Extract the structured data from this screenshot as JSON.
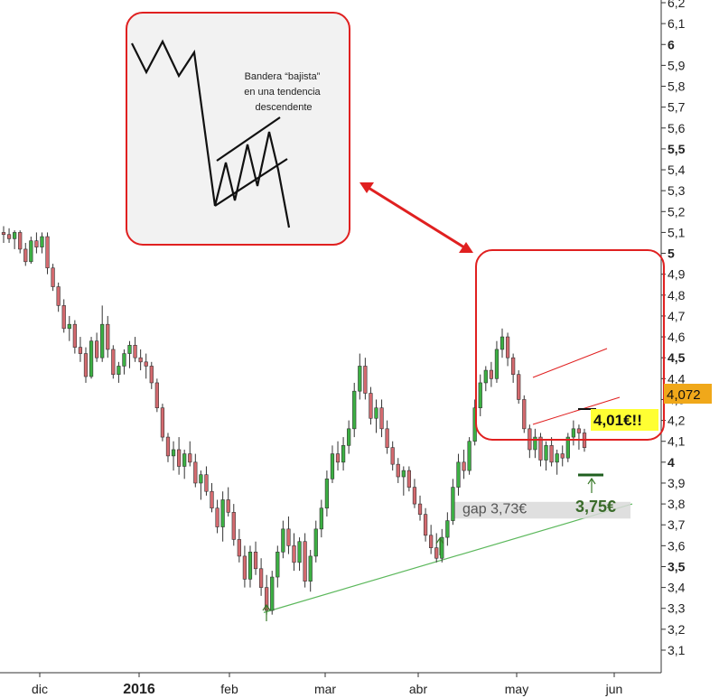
{
  "chart_data": {
    "type": "candlestick",
    "y_ticks": [
      "3,1",
      "3,2",
      "3,3",
      "3,4",
      "3,5",
      "3,6",
      "3,7",
      "3,8",
      "3,9",
      "4",
      "4,1",
      "4,2",
      "4,3",
      "4,4",
      "4,5",
      "4,6",
      "4,7",
      "4,8",
      "4,9",
      "5",
      "5,1",
      "5,2",
      "5,3",
      "5,4",
      "5,5",
      "5,6",
      "5,7",
      "5,8",
      "5,9",
      "6",
      "6,1",
      "6,2"
    ],
    "y_ticks_bold": [
      "3,5",
      "4",
      "4,5",
      "5",
      "5,5",
      "6"
    ],
    "ylim": [
      3.05,
      6.25
    ],
    "x_ticks": [
      "dic",
      "2016",
      "feb",
      "mar",
      "abr",
      "may",
      "jun"
    ],
    "x_ticks_bold": [
      "2016"
    ],
    "last_price_label": "4,072",
    "last_price": 4.072,
    "colors": {
      "up": "#3cb043",
      "down": "#d46a6f",
      "annotation_red": "#e02020",
      "support": "#5cb85c",
      "gap_box": "#d9d9d9",
      "price_box": "#f0a81a",
      "callout_bg": "#ffff33"
    },
    "annotations": {
      "flag_level": "4,01€!!",
      "gap_label": "gap 3,73€",
      "support_level": "3,75€",
      "inset_caption": [
        "Bandera “bajista”",
        "en una tendencia",
        "descendente"
      ]
    },
    "support_line": {
      "from": [
        "feb",
        3.28
      ],
      "to": [
        "jun",
        3.8
      ]
    },
    "gap_zone": [
      3.73,
      3.81
    ],
    "flag_channel_upper": [
      [
        4.16,
        4.26
      ]
    ],
    "candles": [
      [
        5.1,
        5.13,
        5.05,
        5.09
      ],
      [
        5.09,
        5.12,
        5.05,
        5.07
      ],
      [
        5.07,
        5.11,
        5.02,
        5.1
      ],
      [
        5.1,
        5.11,
        5.0,
        5.02
      ],
      [
        5.02,
        5.05,
        4.94,
        4.96
      ],
      [
        4.96,
        5.08,
        4.95,
        5.06
      ],
      [
        5.06,
        5.1,
        5.0,
        5.03
      ],
      [
        5.03,
        5.1,
        5.0,
        5.08
      ],
      [
        5.08,
        5.1,
        4.9,
        4.93
      ],
      [
        4.93,
        4.95,
        4.82,
        4.84
      ],
      [
        4.84,
        4.86,
        4.72,
        4.75
      ],
      [
        4.75,
        4.78,
        4.62,
        4.64
      ],
      [
        4.64,
        4.7,
        4.58,
        4.66
      ],
      [
        4.66,
        4.68,
        4.52,
        4.55
      ],
      [
        4.55,
        4.6,
        4.48,
        4.52
      ],
      [
        4.52,
        4.55,
        4.38,
        4.41
      ],
      [
        4.41,
        4.6,
        4.4,
        4.58
      ],
      [
        4.58,
        4.62,
        4.48,
        4.5
      ],
      [
        4.5,
        4.75,
        4.48,
        4.66
      ],
      [
        4.66,
        4.7,
        4.5,
        4.54
      ],
      [
        4.54,
        4.56,
        4.4,
        4.42
      ],
      [
        4.42,
        4.48,
        4.38,
        4.46
      ],
      [
        4.46,
        4.54,
        4.42,
        4.52
      ],
      [
        4.52,
        4.58,
        4.45,
        4.56
      ],
      [
        4.56,
        4.6,
        4.48,
        4.5
      ],
      [
        4.5,
        4.54,
        4.44,
        4.48
      ],
      [
        4.48,
        4.52,
        4.4,
        4.46
      ],
      [
        4.46,
        4.48,
        4.35,
        4.38
      ],
      [
        4.38,
        4.4,
        4.24,
        4.26
      ],
      [
        4.26,
        4.28,
        4.1,
        4.12
      ],
      [
        4.12,
        4.14,
        4.0,
        4.03
      ],
      [
        4.03,
        4.1,
        3.96,
        4.06
      ],
      [
        4.06,
        4.12,
        3.94,
        3.98
      ],
      [
        3.98,
        4.06,
        3.92,
        4.04
      ],
      [
        4.04,
        4.1,
        3.98,
        4.0
      ],
      [
        4.0,
        4.04,
        3.88,
        3.9
      ],
      [
        3.9,
        3.96,
        3.82,
        3.94
      ],
      [
        3.94,
        3.98,
        3.84,
        3.86
      ],
      [
        3.86,
        3.9,
        3.76,
        3.78
      ],
      [
        3.78,
        3.82,
        3.66,
        3.69
      ],
      [
        3.69,
        3.86,
        3.62,
        3.82
      ],
      [
        3.82,
        3.88,
        3.74,
        3.76
      ],
      [
        3.76,
        3.8,
        3.6,
        3.63
      ],
      [
        3.63,
        3.68,
        3.52,
        3.55
      ],
      [
        3.55,
        3.6,
        3.4,
        3.44
      ],
      [
        3.44,
        3.6,
        3.4,
        3.57
      ],
      [
        3.57,
        3.62,
        3.46,
        3.49
      ],
      [
        3.49,
        3.54,
        3.36,
        3.4
      ],
      [
        3.4,
        3.46,
        3.27,
        3.29
      ],
      [
        3.29,
        3.48,
        3.27,
        3.45
      ],
      [
        3.45,
        3.6,
        3.4,
        3.57
      ],
      [
        3.57,
        3.72,
        3.54,
        3.68
      ],
      [
        3.68,
        3.74,
        3.56,
        3.6
      ],
      [
        3.6,
        3.66,
        3.48,
        3.52
      ],
      [
        3.52,
        3.64,
        3.48,
        3.62
      ],
      [
        3.62,
        3.66,
        3.4,
        3.43
      ],
      [
        3.43,
        3.58,
        3.38,
        3.55
      ],
      [
        3.55,
        3.72,
        3.52,
        3.68
      ],
      [
        3.68,
        3.82,
        3.64,
        3.78
      ],
      [
        3.78,
        3.96,
        3.74,
        3.92
      ],
      [
        3.92,
        4.08,
        3.9,
        4.04
      ],
      [
        4.04,
        4.1,
        3.96,
        4.0
      ],
      [
        4.0,
        4.12,
        3.96,
        4.08
      ],
      [
        4.08,
        4.2,
        4.04,
        4.16
      ],
      [
        4.16,
        4.38,
        4.12,
        4.34
      ],
      [
        4.34,
        4.52,
        4.3,
        4.46
      ],
      [
        4.46,
        4.5,
        4.3,
        4.33
      ],
      [
        4.33,
        4.36,
        4.18,
        4.21
      ],
      [
        4.21,
        4.3,
        4.14,
        4.26
      ],
      [
        4.26,
        4.3,
        4.12,
        4.16
      ],
      [
        4.16,
        4.2,
        4.04,
        4.07
      ],
      [
        4.07,
        4.1,
        3.96,
        3.99
      ],
      [
        3.99,
        4.02,
        3.9,
        3.93
      ],
      [
        3.93,
        3.98,
        3.84,
        3.96
      ],
      [
        3.96,
        3.98,
        3.86,
        3.88
      ],
      [
        3.88,
        3.92,
        3.78,
        3.8
      ],
      [
        3.8,
        3.84,
        3.72,
        3.75
      ],
      [
        3.75,
        3.78,
        3.62,
        3.65
      ],
      [
        3.65,
        3.7,
        3.56,
        3.59
      ],
      [
        3.59,
        3.66,
        3.52,
        3.54
      ],
      [
        3.54,
        3.68,
        3.52,
        3.64
      ],
      [
        3.64,
        3.76,
        3.6,
        3.72
      ],
      [
        3.72,
        3.92,
        3.7,
        3.88
      ],
      [
        3.88,
        4.04,
        3.84,
        4.0
      ],
      [
        4.0,
        4.06,
        3.92,
        3.96
      ],
      [
        3.96,
        4.12,
        3.94,
        4.1
      ],
      [
        4.1,
        4.3,
        4.08,
        4.26
      ],
      [
        4.26,
        4.42,
        4.22,
        4.38
      ],
      [
        4.38,
        4.46,
        4.34,
        4.44
      ],
      [
        4.44,
        4.48,
        4.36,
        4.4
      ],
      [
        4.4,
        4.58,
        4.38,
        4.54
      ],
      [
        4.54,
        4.64,
        4.5,
        4.6
      ],
      [
        4.6,
        4.62,
        4.46,
        4.5
      ],
      [
        4.5,
        4.52,
        4.38,
        4.42
      ],
      [
        4.42,
        4.44,
        4.28,
        4.3
      ],
      [
        4.3,
        4.32,
        4.14,
        4.16
      ],
      [
        4.16,
        4.18,
        4.02,
        4.06
      ],
      [
        4.06,
        4.16,
        4.02,
        4.12
      ],
      [
        4.12,
        4.14,
        3.98,
        4.01
      ],
      [
        4.01,
        4.1,
        3.96,
        4.08
      ],
      [
        4.08,
        4.12,
        3.98,
        4.0
      ],
      [
        4.0,
        4.06,
        3.94,
        4.04
      ],
      [
        4.04,
        4.08,
        3.98,
        4.02
      ],
      [
        4.02,
        4.14,
        4.0,
        4.12
      ],
      [
        4.12,
        4.2,
        4.08,
        4.16
      ],
      [
        4.16,
        4.18,
        4.06,
        4.14
      ],
      [
        4.14,
        4.16,
        4.05,
        4.07
      ]
    ]
  }
}
